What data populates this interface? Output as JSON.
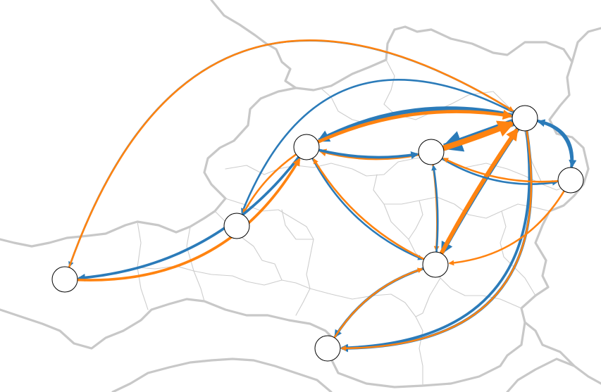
{
  "colors": {
    "series_a": "#2b7bb9",
    "series_b": "#ff8310",
    "node_fill": "#ffffff",
    "node_stroke": "#000000",
    "border": "#c8c8c8"
  },
  "nodes": [
    {
      "id": "n1"
    },
    {
      "id": "n2"
    },
    {
      "id": "n3"
    },
    {
      "id": "n4"
    },
    {
      "id": "n5"
    },
    {
      "id": "n6"
    },
    {
      "id": "n7"
    },
    {
      "id": "n8"
    },
    {
      "id": "n9"
    }
  ],
  "flows": [
    {
      "from": "n1",
      "to": "n4",
      "series": "a",
      "weight": 1
    },
    {
      "from": "n1",
      "to": "n2",
      "series": "a",
      "weight": 1
    },
    {
      "from": "n1",
      "to": "n3",
      "series": "a",
      "weight": 4
    },
    {
      "from": "n1",
      "to": "n5",
      "series": "a",
      "weight": 8
    },
    {
      "from": "n1",
      "to": "n7",
      "series": "a",
      "weight": 4
    },
    {
      "from": "n1",
      "to": "n6",
      "series": "a",
      "weight": 2
    },
    {
      "from": "n1",
      "to": "n8",
      "series": "a",
      "weight": 2
    },
    {
      "from": "n1",
      "to": "n9",
      "series": "a",
      "weight": 2
    },
    {
      "from": "n2",
      "to": "n1",
      "series": "b",
      "weight": 1
    },
    {
      "from": "n3",
      "to": "n1",
      "series": "b",
      "weight": 3
    },
    {
      "from": "n5",
      "to": "n1",
      "series": "b",
      "weight": 6
    },
    {
      "from": "n7",
      "to": "n1",
      "series": "b",
      "weight": 4
    },
    {
      "from": "n6",
      "to": "n1",
      "series": "b",
      "weight": 1
    },
    {
      "from": "n3",
      "to": "n4",
      "series": "b",
      "weight": 1
    },
    {
      "from": "n3",
      "to": "n2",
      "series": "a",
      "weight": 2
    },
    {
      "from": "n2",
      "to": "n3",
      "series": "b",
      "weight": 2
    },
    {
      "from": "n5",
      "to": "n3",
      "series": "b",
      "weight": 2
    },
    {
      "from": "n3",
      "to": "n5",
      "series": "a",
      "weight": 2
    },
    {
      "from": "n3",
      "to": "n7",
      "series": "a",
      "weight": 1
    },
    {
      "from": "n7",
      "to": "n3",
      "series": "b",
      "weight": 1
    },
    {
      "from": "n5",
      "to": "n7",
      "series": "b",
      "weight": 1
    },
    {
      "from": "n7",
      "to": "n5",
      "series": "a",
      "weight": 1
    },
    {
      "from": "n5",
      "to": "n6",
      "series": "a",
      "weight": 1
    },
    {
      "from": "n6",
      "to": "n5",
      "series": "b",
      "weight": 1
    },
    {
      "from": "n6",
      "to": "n7",
      "series": "b",
      "weight": 1
    },
    {
      "from": "n7",
      "to": "n9",
      "series": "a",
      "weight": 2
    },
    {
      "from": "n9",
      "to": "n7",
      "series": "b",
      "weight": 1
    },
    {
      "from": "n1",
      "to": "n9",
      "series": "b",
      "weight": 1
    },
    {
      "from": "n6",
      "to": "n1",
      "series": "a",
      "weight": 2
    }
  ]
}
